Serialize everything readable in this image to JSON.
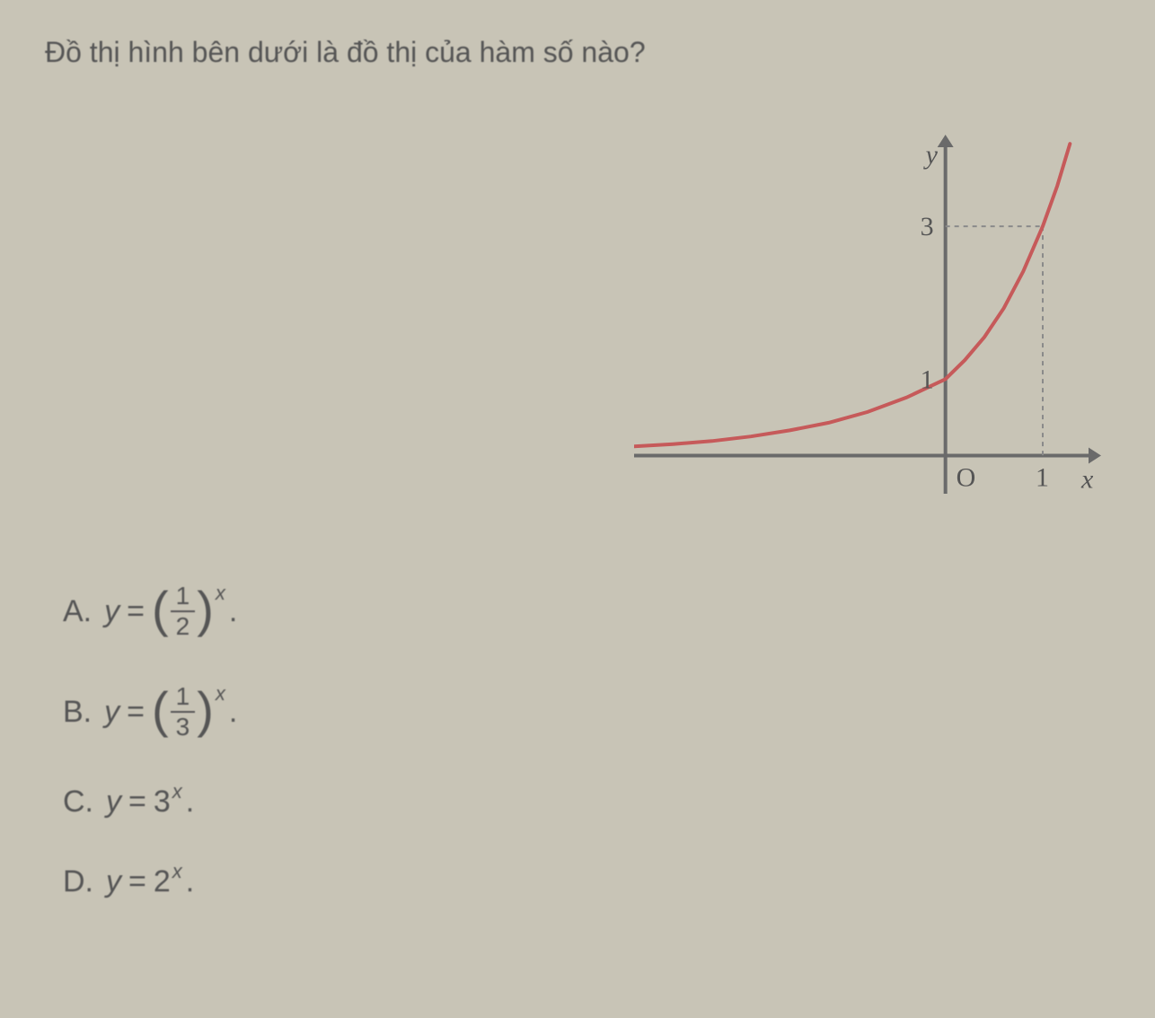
{
  "question": {
    "text": "Đồ thị hình bên dưới là đồ thị của hàm số nào?"
  },
  "chart": {
    "type": "line",
    "background_color": "#c8c4b6",
    "axis_color": "#6a6a6a",
    "axis_width": 4,
    "curve_color": "#c65a5a",
    "curve_width": 4,
    "dashed_color": "#8a8a8a",
    "xlim": [
      -3.2,
      1.6
    ],
    "ylim": [
      -0.5,
      4.2
    ],
    "y_intercept_label": "1",
    "y_mark_label": "3",
    "x_mark_label": "1",
    "origin_label": "O",
    "x_axis_label": "x",
    "y_axis_label": "y",
    "label_fontsize": 30,
    "label_color": "#555555",
    "curve_points": [
      [
        -3.2,
        0.12
      ],
      [
        -2.8,
        0.15
      ],
      [
        -2.4,
        0.19
      ],
      [
        -2.0,
        0.25
      ],
      [
        -1.6,
        0.33
      ],
      [
        -1.2,
        0.43
      ],
      [
        -0.8,
        0.57
      ],
      [
        -0.4,
        0.76
      ],
      [
        0.0,
        1.0
      ],
      [
        0.2,
        1.25
      ],
      [
        0.4,
        1.55
      ],
      [
        0.6,
        1.93
      ],
      [
        0.8,
        2.41
      ],
      [
        1.0,
        3.0
      ],
      [
        1.15,
        3.53
      ],
      [
        1.28,
        4.08
      ]
    ]
  },
  "options": {
    "A": {
      "letter": "A.",
      "var": "y",
      "eq": "=",
      "type": "frac_power",
      "num": "1",
      "den": "2",
      "exp": "x",
      "trail": "."
    },
    "B": {
      "letter": "B.",
      "var": "y",
      "eq": "=",
      "type": "frac_power",
      "num": "1",
      "den": "3",
      "exp": "x",
      "trail": "."
    },
    "C": {
      "letter": "C.",
      "var": "y",
      "eq": "=",
      "type": "base_power",
      "base": "3",
      "exp": "x",
      "trail": "."
    },
    "D": {
      "letter": "D.",
      "var": "y",
      "eq": "=",
      "type": "base_power",
      "base": "2",
      "exp": "x",
      "trail": "."
    }
  }
}
